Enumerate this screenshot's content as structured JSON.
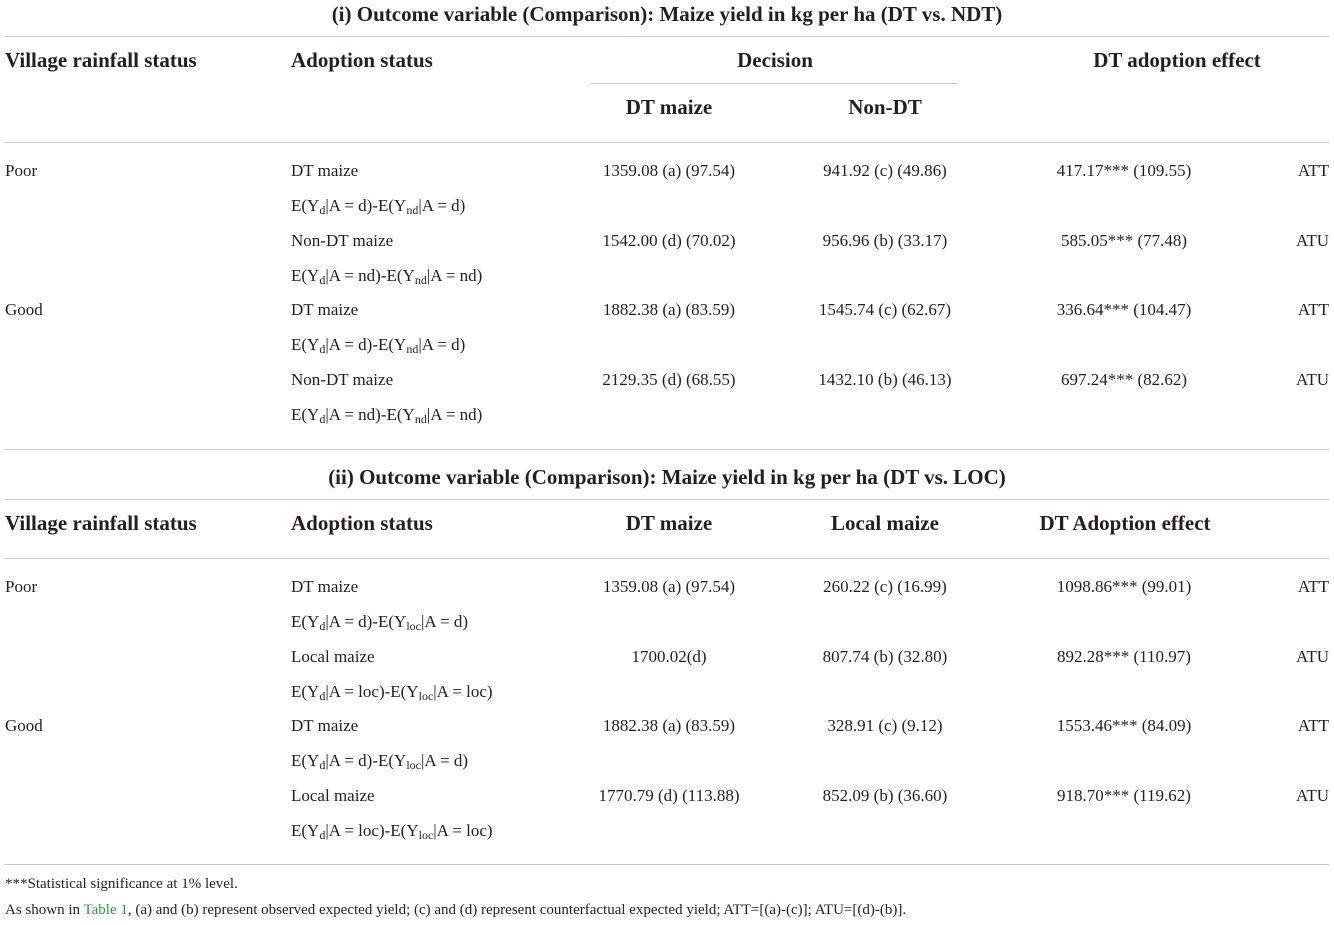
{
  "panel1": {
    "title": "(i) Outcome variable (Comparison): Maize yield in kg per ha (DT vs. NDT)",
    "headers": {
      "village": "Village rainfall status",
      "adoption": "Adoption status",
      "decision": "Decision",
      "dt": "DT maize",
      "other": "Non-DT",
      "effect": "DT adoption effect"
    },
    "rows": [
      {
        "village": "Poor",
        "adoption": "DT maize",
        "e_sub2": "nd",
        "e_cond": "d",
        "dt": "1359.08 (a) (97.54)",
        "other": "941.92 (c) (49.86)",
        "effect": "417.17*** (109.55)",
        "type": "ATT"
      },
      {
        "village": "",
        "adoption": "Non-DT maize",
        "e_sub2": "nd",
        "e_cond": "nd",
        "dt": "1542.00 (d) (70.02)",
        "other": "956.96 (b) (33.17)",
        "effect": "585.05*** (77.48)",
        "type": "ATU"
      },
      {
        "village": "Good",
        "adoption": "DT maize",
        "e_sub2": "nd",
        "e_cond": "d",
        "dt": "1882.38 (a) (83.59)",
        "other": "1545.74 (c) (62.67)",
        "effect": "336.64*** (104.47)",
        "type": "ATT"
      },
      {
        "village": "",
        "adoption": "Non-DT maize",
        "e_sub2": "nd",
        "e_cond": "nd",
        "dt": "2129.35 (d) (68.55)",
        "other": "1432.10 (b) (46.13)",
        "effect": "697.24*** (82.62)",
        "type": "ATU"
      }
    ]
  },
  "panel2": {
    "title": "(ii) Outcome variable (Comparison): Maize yield in kg per ha (DT vs. LOC)",
    "headers": {
      "village": "Village rainfall status",
      "adoption": "Adoption status",
      "dt": "DT maize",
      "other": "Local maize",
      "effect": "DT Adoption effect"
    },
    "rows": [
      {
        "village": "Poor",
        "adoption": "DT maize",
        "e_sub2": "loc",
        "e_cond": "d",
        "dt": "1359.08 (a) (97.54)",
        "other": "260.22 (c) (16.99)",
        "effect": "1098.86*** (99.01)",
        "type": "ATT"
      },
      {
        "village": "",
        "adoption": "Local maize",
        "e_sub2": "loc",
        "e_cond": "loc",
        "dt": "1700.02(d)",
        "other": "807.74 (b) (32.80)",
        "effect": "892.28*** (110.97)",
        "type": "ATU"
      },
      {
        "village": "Good",
        "adoption": "DT maize",
        "e_sub2": "loc",
        "e_cond": "d",
        "dt": "1882.38 (a) (83.59)",
        "other": "328.91 (c) (9.12)",
        "effect": "1553.46*** (84.09)",
        "type": "ATT"
      },
      {
        "village": "",
        "adoption": "Local maize",
        "e_sub2": "loc",
        "e_cond": "loc",
        "dt": "1770.79 (d) (113.88)",
        "other": "852.09 (b) (36.60)",
        "effect": "918.70*** (119.62)",
        "type": "ATU"
      }
    ]
  },
  "expr": {
    "e": "E(Y",
    "sub1": "d",
    "bar": "|A = ",
    "mid": ")-E(Y",
    "close": ")"
  },
  "notes": {
    "significance": "***Statistical significance at 1% level.",
    "source_pre": "As shown in ",
    "source_link": "Table 1",
    "source_post": ", (a) and (b) represent observed expected yield; (c) and (d) represent counterfactual expected yield; ATT=[(a)-(c)]; ATU=[(d)-(b)]."
  }
}
